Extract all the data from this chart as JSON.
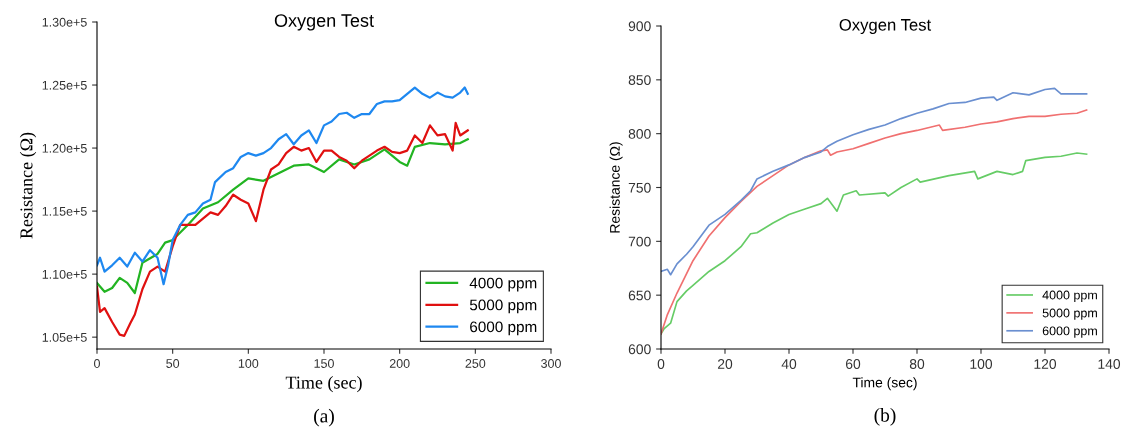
{
  "chart_data": [
    {
      "type": "line",
      "title": "Oxygen Test",
      "xlabel": "Time (sec)",
      "ylabel": "Resistance (Ω)",
      "annotations": [
        "(a)"
      ],
      "xlim": [
        0,
        300
      ],
      "xticks": [
        0,
        50,
        100,
        150,
        200,
        250,
        300
      ],
      "ylim": [
        104060,
        130000
      ],
      "yticks": [
        {
          "value": 105000,
          "label": "1.05e+5"
        },
        {
          "value": 110000,
          "label": "1.10e+5"
        },
        {
          "value": 115000,
          "label": "1.15e+5"
        },
        {
          "value": 120000,
          "label": "1.20e+5"
        },
        {
          "value": 125000,
          "label": "1.25e+5"
        },
        {
          "value": 130000,
          "label": "1.30e+5"
        }
      ],
      "grid": false,
      "legend": "bottom right",
      "marker": "none",
      "line_style": "solid",
      "series": [
        {
          "name": "4000 ppm",
          "color": "#22b422",
          "x": [
            0,
            5,
            10,
            15,
            20,
            25,
            30,
            40,
            45,
            50,
            60,
            70,
            80,
            90,
            100,
            110,
            120,
            130,
            140,
            150,
            160,
            170,
            180,
            190,
            200,
            205,
            210,
            220,
            230,
            240,
            245
          ],
          "values": [
            109300,
            108600,
            108900,
            109700,
            109300,
            108500,
            110900,
            111600,
            112500,
            112700,
            113900,
            115200,
            115700,
            116700,
            117600,
            117400,
            118000,
            118600,
            118700,
            118100,
            119100,
            118700,
            119100,
            119900,
            118900,
            118600,
            120100,
            120400,
            120300,
            120400,
            120700
          ]
        },
        {
          "name": "5000 ppm",
          "color": "#e01010",
          "x": [
            0,
            2,
            5,
            10,
            15,
            18,
            22,
            25,
            30,
            35,
            40,
            45,
            50,
            55,
            60,
            65,
            70,
            75,
            80,
            85,
            90,
            95,
            100,
            105,
            110,
            115,
            120,
            125,
            130,
            135,
            140,
            145,
            150,
            155,
            160,
            165,
            170,
            175,
            180,
            185,
            190,
            195,
            200,
            205,
            210,
            215,
            220,
            225,
            230,
            235,
            237,
            240,
            245
          ],
          "values": [
            109000,
            107000,
            107300,
            106200,
            105200,
            105100,
            106100,
            106800,
            108800,
            110200,
            110600,
            110200,
            112200,
            113900,
            113900,
            113900,
            114400,
            114900,
            114700,
            115400,
            116300,
            115900,
            115600,
            114200,
            116700,
            118300,
            118700,
            119600,
            120100,
            119800,
            120000,
            118900,
            119800,
            119800,
            119300,
            119000,
            118400,
            119000,
            119400,
            119800,
            120100,
            119700,
            119600,
            119800,
            121000,
            120400,
            121800,
            121000,
            121100,
            119800,
            122000,
            121000,
            121400
          ]
        },
        {
          "name": "6000 ppm",
          "color": "#1e88f0",
          "x": [
            0,
            2,
            5,
            10,
            15,
            20,
            25,
            30,
            35,
            40,
            44,
            47,
            50,
            55,
            60,
            65,
            70,
            75,
            78,
            85,
            90,
            95,
            100,
            105,
            110,
            115,
            120,
            125,
            130,
            135,
            140,
            145,
            150,
            155,
            160,
            165,
            170,
            175,
            180,
            185,
            190,
            195,
            200,
            205,
            210,
            215,
            220,
            225,
            230,
            235,
            240,
            243,
            245
          ],
          "values": [
            110700,
            111300,
            110200,
            110700,
            111300,
            110600,
            111700,
            111000,
            111900,
            111300,
            109200,
            110700,
            112700,
            113900,
            114700,
            114900,
            115600,
            115900,
            117300,
            118100,
            118400,
            119300,
            119600,
            119400,
            119600,
            120000,
            120700,
            121100,
            120300,
            121000,
            121400,
            120400,
            121800,
            122100,
            122700,
            122800,
            122400,
            122700,
            122700,
            123500,
            123700,
            123700,
            123800,
            124300,
            124800,
            124300,
            124000,
            124400,
            124100,
            124000,
            124400,
            124800,
            124300
          ]
        }
      ]
    },
    {
      "type": "line",
      "title": "Oxygen Test",
      "xlabel": "Time (sec)",
      "ylabel": "Resistance (Ω)",
      "annotations": [
        "(b)"
      ],
      "xlim": [
        0,
        140
      ],
      "xticks": [
        0,
        20,
        40,
        60,
        80,
        100,
        120,
        140
      ],
      "ylim": [
        600,
        900
      ],
      "yticks": [
        600,
        650,
        700,
        750,
        800,
        850,
        900
      ],
      "grid": false,
      "legend": "bottom right",
      "marker": "none",
      "line_style": "solid",
      "series": [
        {
          "name": "4000 ppm",
          "color": "#66cc66",
          "x": [
            0,
            1,
            3,
            5,
            8,
            10,
            15,
            20,
            25,
            28,
            30,
            35,
            40,
            45,
            50,
            52,
            55,
            57,
            61,
            62,
            70,
            71,
            75,
            80,
            81,
            90,
            98,
            99,
            105,
            110,
            113,
            114,
            120,
            125,
            130,
            133
          ],
          "values": [
            614,
            619,
            624,
            644,
            654,
            659,
            672,
            682,
            695,
            707,
            708,
            717,
            725,
            730,
            735,
            740,
            728,
            743,
            747,
            743,
            745,
            742,
            750,
            758,
            755,
            761,
            765,
            758,
            765,
            762,
            765,
            775,
            778,
            779,
            782,
            781
          ]
        },
        {
          "name": "5000 ppm",
          "color": "#f07070",
          "x": [
            0,
            2,
            5,
            10,
            15,
            20,
            25,
            30,
            35,
            40,
            45,
            50,
            52,
            53,
            55,
            60,
            65,
            70,
            75,
            80,
            87,
            88,
            95,
            100,
            105,
            110,
            115,
            120,
            125,
            130,
            133
          ],
          "values": [
            614,
            632,
            652,
            682,
            705,
            722,
            737,
            751,
            761,
            771,
            778,
            784,
            785,
            780,
            783,
            786,
            791,
            796,
            800,
            803,
            808,
            803,
            806,
            809,
            811,
            814,
            816,
            816,
            818,
            819,
            822
          ]
        },
        {
          "name": "6000 ppm",
          "color": "#6a8fd0",
          "x": [
            0,
            2,
            3,
            5,
            8,
            10,
            15,
            20,
            25,
            28,
            30,
            35,
            40,
            45,
            50,
            52,
            55,
            60,
            65,
            70,
            75,
            80,
            85,
            90,
            95,
            100,
            104,
            105,
            110,
            115,
            120,
            123,
            125,
            130,
            133
          ],
          "values": [
            672,
            674,
            669,
            679,
            688,
            695,
            715,
            725,
            738,
            747,
            758,
            765,
            771,
            778,
            783,
            788,
            793,
            799,
            804,
            808,
            814,
            819,
            823,
            828,
            829,
            833,
            834,
            831,
            838,
            836,
            841,
            842,
            837,
            837,
            837
          ]
        }
      ]
    }
  ]
}
